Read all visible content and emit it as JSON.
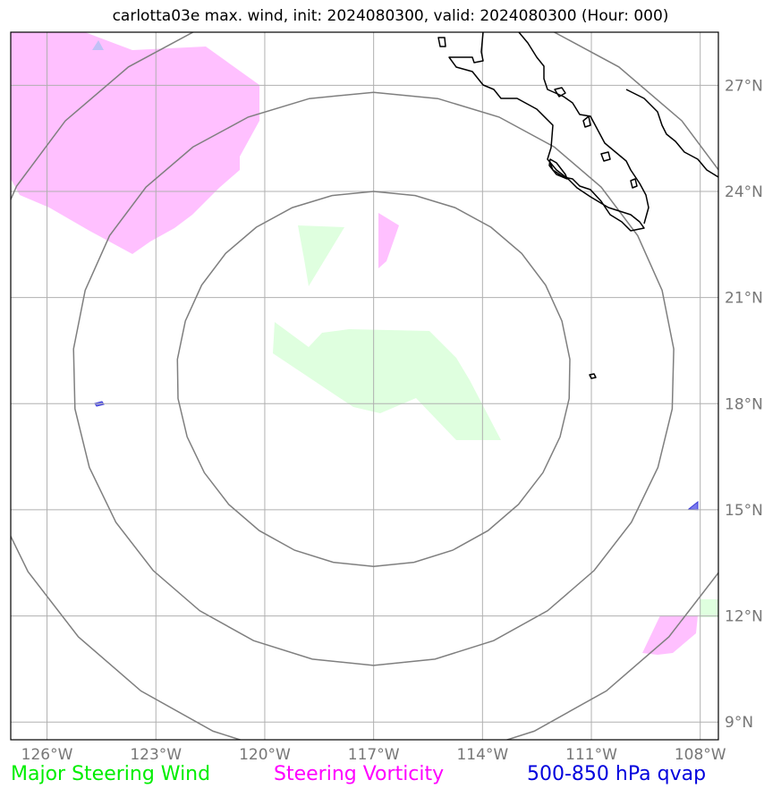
{
  "title": "carlotta03e max. wind, init: 2024080300, valid: 2024080300 (Hour: 000)",
  "map": {
    "projection": "lat-lon",
    "lon_range": [
      -127,
      -107.5
    ],
    "lat_range": [
      8.5,
      28.5
    ],
    "gridlines": true,
    "lat_ticks": [
      {
        "value": 27,
        "label": "27°N"
      },
      {
        "value": 24,
        "label": "24°N"
      },
      {
        "value": 21,
        "label": "21°N"
      },
      {
        "value": 18,
        "label": "18°N"
      },
      {
        "value": 15,
        "label": "15°N"
      },
      {
        "value": 12,
        "label": "12°N"
      },
      {
        "value": 9,
        "label": "9°N"
      }
    ],
    "lon_ticks": [
      {
        "value": -126,
        "label": "126°W"
      },
      {
        "value": -123,
        "label": "123°W"
      },
      {
        "value": -120,
        "label": "120°W"
      },
      {
        "value": -117,
        "label": "117°W"
      },
      {
        "value": -114,
        "label": "114°W"
      },
      {
        "value": -111,
        "label": "111°W"
      },
      {
        "value": -108,
        "label": "108°W"
      }
    ],
    "range_rings": {
      "center": {
        "lon": -117,
        "lat": 18.7
      },
      "radii_deg": [
        5.3,
        8.1,
        10.9
      ]
    },
    "colors": {
      "steering_wind": "#dfffdf",
      "steering_vorticity": "#ffc0ff",
      "qvap": "#7a7aee",
      "rings": "#7f7f7f",
      "grid": "#b0b0b0",
      "coast": "#000000"
    }
  },
  "legend": {
    "wind": "Major Steering Wind",
    "vorticity": "Steering Vorticity",
    "qvap": "500-850 hPa qvap"
  }
}
